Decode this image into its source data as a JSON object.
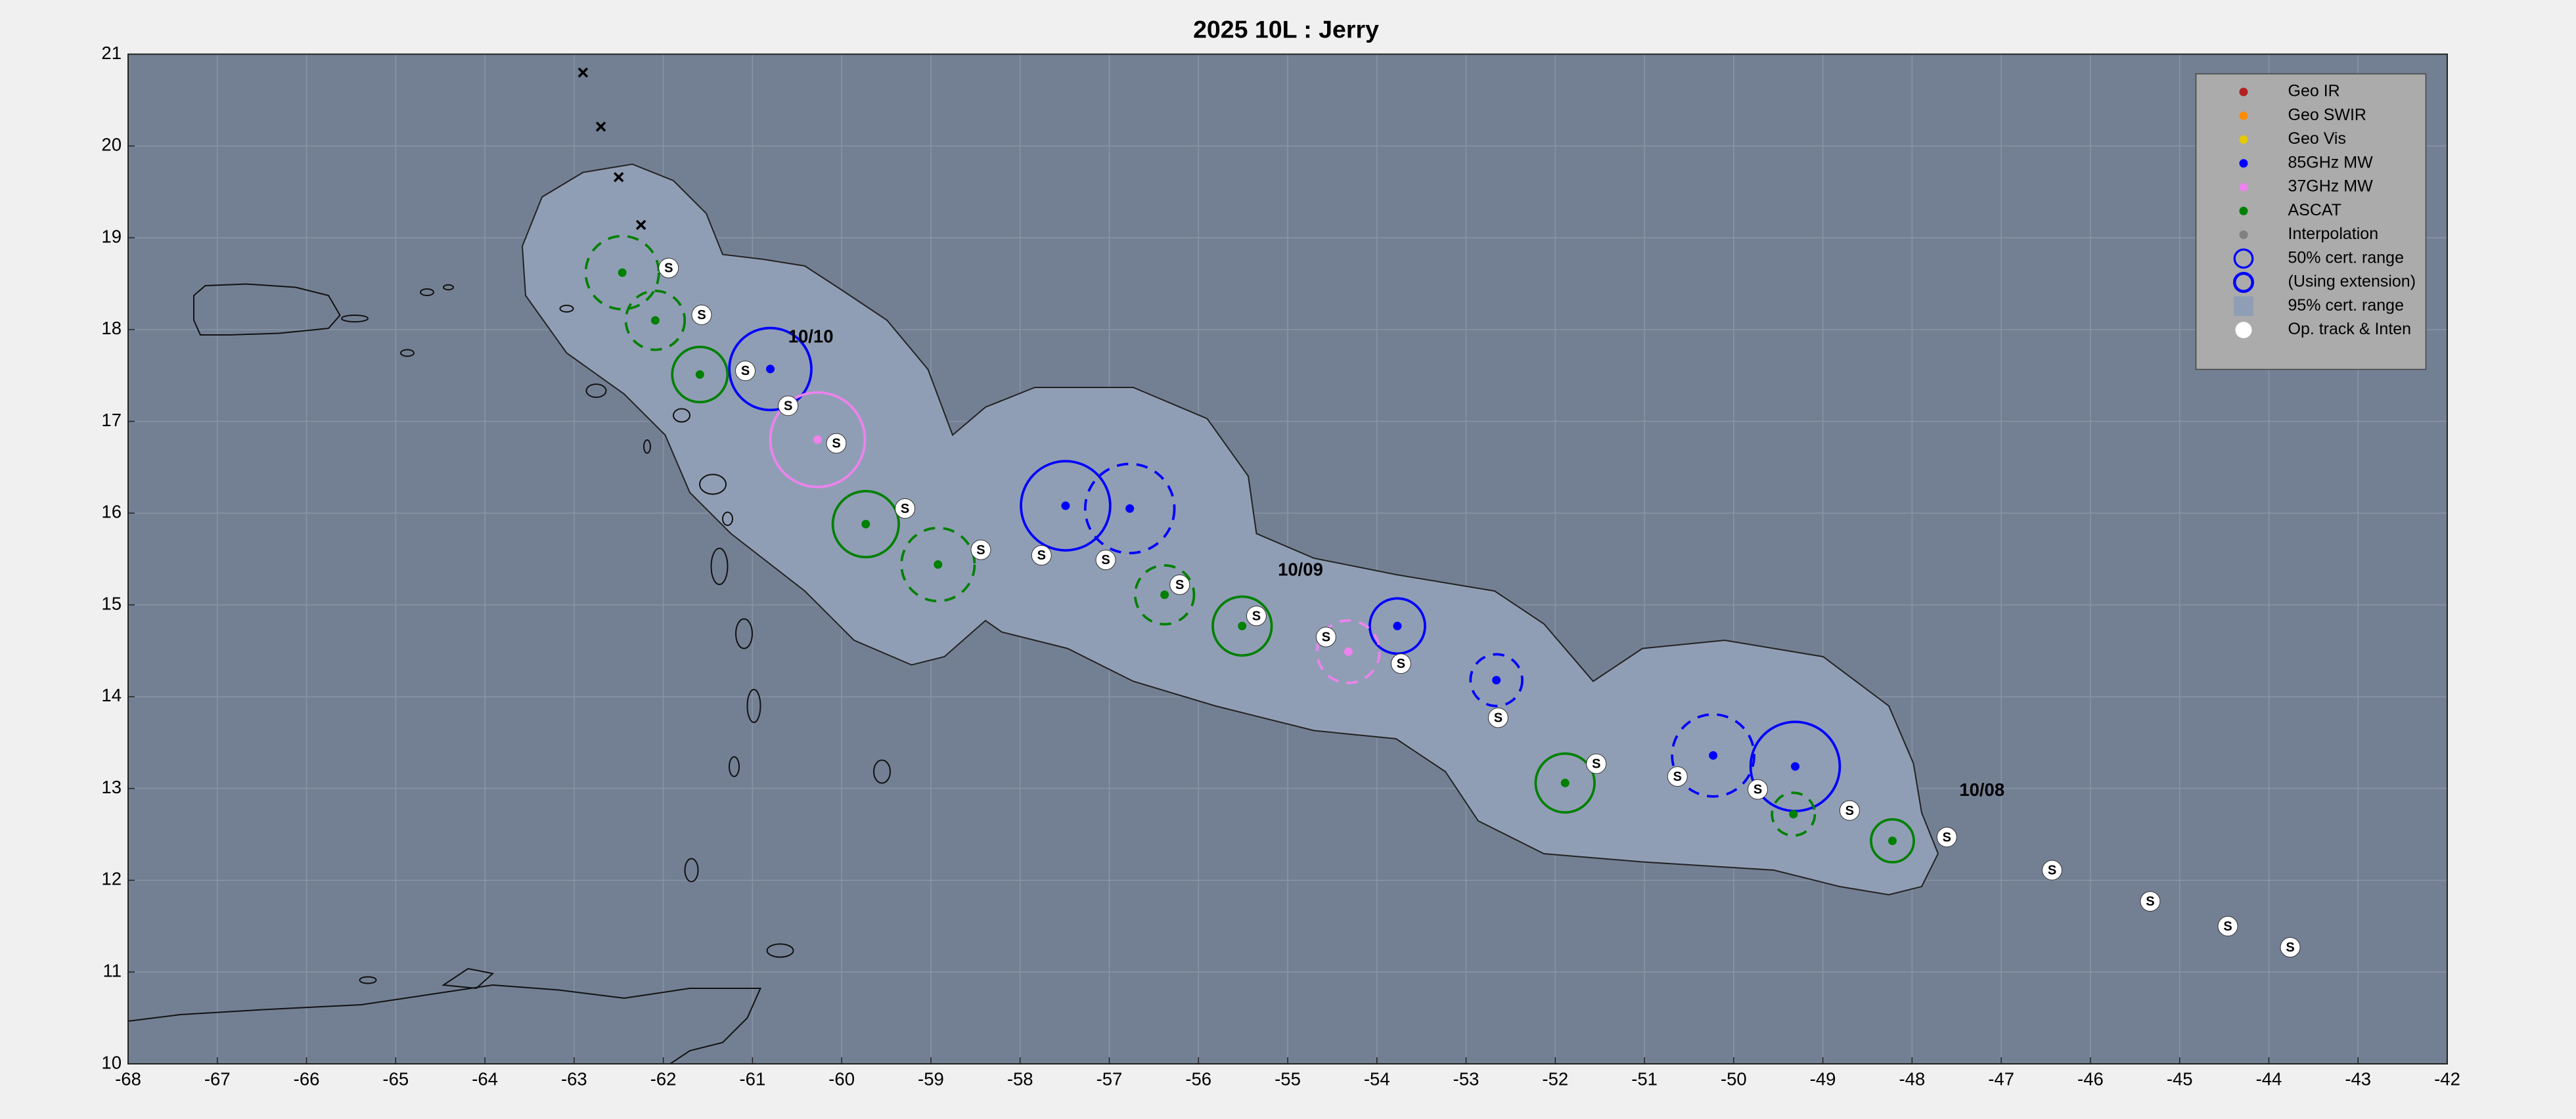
{
  "chart_data": {
    "type": "map",
    "title": "2025  10L :  Jerry",
    "xlim": [
      -68,
      -42
    ],
    "ylim": [
      10,
      21
    ],
    "xticks": [
      -68,
      -67,
      -66,
      -65,
      -64,
      -63,
      -62,
      -61,
      -60,
      -59,
      -58,
      -57,
      -56,
      -55,
      -54,
      -53,
      -52,
      -51,
      -50,
      -49,
      -48,
      -47,
      -46,
      -45,
      -44,
      -43,
      -42
    ],
    "yticks": [
      10,
      11,
      12,
      13,
      14,
      15,
      16,
      17,
      18,
      19,
      20,
      21
    ],
    "grid": true,
    "legend": "upper right",
    "series": [
      {
        "name": "Geo IR",
        "color": "#b22222",
        "x": [],
        "values": [],
        "radius": [],
        "extension": []
      },
      {
        "name": "Geo SWIR",
        "color": "#ff8c00",
        "x": [],
        "values": [],
        "radius": [],
        "extension": []
      },
      {
        "name": "Geo Vis",
        "color": "#e6c800",
        "x": [],
        "values": [],
        "radius": [],
        "extension": []
      },
      {
        "name": "85GHz MW",
        "color": "#0000ff",
        "x": [
          -49.31,
          -50.23,
          -52.66,
          -53.77,
          -56.77,
          -57.49,
          -60.8
        ],
        "values": [
          13.24,
          13.36,
          14.18,
          14.77,
          16.05,
          16.08,
          17.57
        ],
        "radius": [
          0.5,
          0.46,
          0.29,
          0.31,
          0.5,
          0.5,
          0.46
        ],
        "extension": [
          false,
          true,
          true,
          false,
          true,
          false,
          false
        ]
      },
      {
        "name": "37GHz MW",
        "color": "#ee82ee",
        "x": [
          -54.32,
          -60.27
        ],
        "values": [
          14.49,
          16.8
        ],
        "radius": [
          0.35,
          0.53
        ],
        "extension": [
          true,
          false
        ]
      },
      {
        "name": "ASCAT",
        "color": "#008000",
        "x": [
          -48.22,
          -49.33,
          -51.89,
          -55.51,
          -56.38,
          -58.92,
          -59.73,
          -61.59,
          -62.09,
          -62.46
        ],
        "values": [
          12.43,
          12.72,
          13.06,
          14.77,
          15.11,
          15.44,
          15.88,
          17.51,
          18.1,
          18.62
        ],
        "radius": [
          0.24,
          0.24,
          0.33,
          0.33,
          0.33,
          0.41,
          0.37,
          0.31,
          0.33,
          0.41
        ],
        "extension": [
          false,
          true,
          false,
          false,
          true,
          true,
          false,
          false,
          true,
          true
        ]
      },
      {
        "name": "Interpolation",
        "color": "#808080",
        "x": [],
        "values": [],
        "radius": [],
        "extension": []
      }
    ],
    "cert_50": {
      "name": "50% cert. range",
      "color": "#0000ff"
    },
    "extension": {
      "name": "(Using extension)",
      "color": "#0000ff"
    },
    "cert_95": {
      "name": "95% cert. range",
      "color": "#909eb5"
    },
    "track": {
      "name": "Op. track & Inten",
      "label": "S",
      "color": "#ffffff",
      "x": [
        -43.76,
        -44.46,
        -45.33,
        -46.43,
        -47.61,
        -48.7,
        -49.73,
        -50.63,
        -51.54,
        -52.64,
        -53.73,
        -54.57,
        -55.35,
        -56.21,
        -57.04,
        -57.76,
        -58.44,
        -59.29,
        -60.06,
        -60.6,
        -61.08,
        -61.57,
        -61.94
      ],
      "values": [
        11.27,
        11.5,
        11.77,
        12.11,
        12.47,
        12.76,
        12.99,
        13.13,
        13.27,
        13.77,
        14.36,
        14.65,
        14.88,
        15.22,
        15.49,
        15.54,
        15.6,
        16.05,
        16.76,
        17.17,
        17.55,
        18.16,
        18.67
      ]
    },
    "annotations": [
      {
        "text": "10/08",
        "x": -47.47,
        "y": 12.97
      },
      {
        "text": "10/09",
        "x": -55.11,
        "y": 15.37
      },
      {
        "text": "10/10",
        "x": -60.6,
        "y": 17.91
      }
    ],
    "markers": {
      "x": [
        -62.25,
        -62.5,
        -62.7,
        -62.9
      ],
      "values": [
        19.14,
        19.66,
        20.21,
        20.8
      ]
    }
  }
}
